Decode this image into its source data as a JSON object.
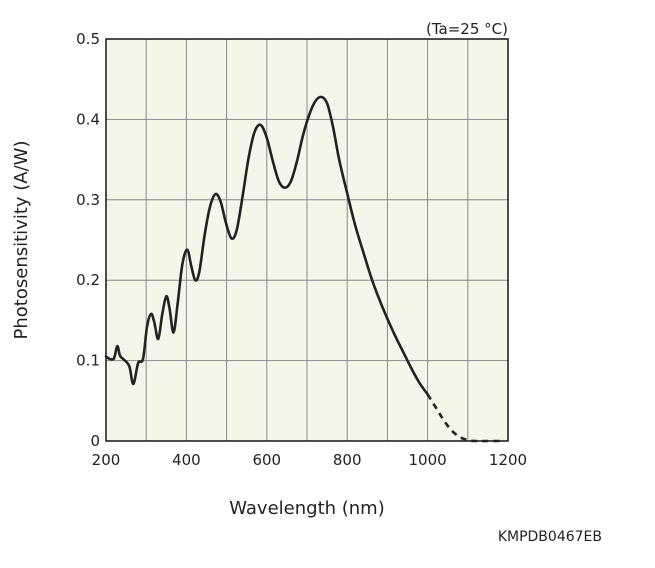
{
  "chart_data": {
    "type": "line",
    "condition": "(Ta=25 °C)",
    "xlabel": "Wavelength (nm)",
    "ylabel": "Photosensitivity (A/W)",
    "xlim": [
      200,
      1200
    ],
    "ylim": [
      0,
      0.5
    ],
    "x_ticks": [
      200,
      400,
      600,
      800,
      1000,
      1200
    ],
    "x_tick_labels": [
      "200",
      "400",
      "600",
      "800",
      "1000",
      "1200"
    ],
    "y_ticks": [
      0,
      0.1,
      0.2,
      0.3,
      0.4,
      0.5
    ],
    "y_tick_labels": [
      "0",
      "0.1",
      "0.2",
      "0.3",
      "0.4",
      "0.5"
    ],
    "x_grid_step": 100,
    "grid": true,
    "doc_code": "KMPDB0467EB",
    "colors": {
      "plot_background": "#f6f5ea",
      "grid": "#8a8a8a",
      "line": "#222222"
    },
    "series": [
      {
        "style": "solid",
        "points": [
          [
            200,
            0.105
          ],
          [
            210,
            0.102
          ],
          [
            220,
            0.103
          ],
          [
            228,
            0.118
          ],
          [
            235,
            0.106
          ],
          [
            245,
            0.101
          ],
          [
            258,
            0.093
          ],
          [
            268,
            0.071
          ],
          [
            280,
            0.097
          ],
          [
            292,
            0.102
          ],
          [
            302,
            0.142
          ],
          [
            312,
            0.158
          ],
          [
            320,
            0.148
          ],
          [
            330,
            0.127
          ],
          [
            340,
            0.158
          ],
          [
            350,
            0.18
          ],
          [
            358,
            0.165
          ],
          [
            368,
            0.135
          ],
          [
            378,
            0.17
          ],
          [
            390,
            0.22
          ],
          [
            402,
            0.238
          ],
          [
            412,
            0.218
          ],
          [
            422,
            0.2
          ],
          [
            432,
            0.21
          ],
          [
            445,
            0.255
          ],
          [
            458,
            0.29
          ],
          [
            472,
            0.307
          ],
          [
            485,
            0.298
          ],
          [
            498,
            0.272
          ],
          [
            512,
            0.252
          ],
          [
            525,
            0.262
          ],
          [
            540,
            0.305
          ],
          [
            555,
            0.353
          ],
          [
            570,
            0.385
          ],
          [
            585,
            0.393
          ],
          [
            600,
            0.377
          ],
          [
            615,
            0.348
          ],
          [
            630,
            0.323
          ],
          [
            645,
            0.315
          ],
          [
            660,
            0.323
          ],
          [
            675,
            0.348
          ],
          [
            690,
            0.38
          ],
          [
            705,
            0.405
          ],
          [
            720,
            0.422
          ],
          [
            735,
            0.428
          ],
          [
            750,
            0.42
          ],
          [
            765,
            0.39
          ],
          [
            780,
            0.35
          ],
          [
            800,
            0.308
          ],
          [
            820,
            0.268
          ],
          [
            840,
            0.235
          ],
          [
            860,
            0.203
          ],
          [
            880,
            0.176
          ],
          [
            900,
            0.152
          ],
          [
            920,
            0.13
          ],
          [
            940,
            0.11
          ],
          [
            960,
            0.09
          ],
          [
            980,
            0.072
          ],
          [
            1000,
            0.058
          ]
        ]
      },
      {
        "style": "dashed",
        "points": [
          [
            1000,
            0.058
          ],
          [
            1020,
            0.042
          ],
          [
            1040,
            0.026
          ],
          [
            1060,
            0.013
          ],
          [
            1080,
            0.005
          ],
          [
            1100,
            0.001
          ],
          [
            1120,
            0.0
          ],
          [
            1150,
            0.0
          ],
          [
            1180,
            0.0
          ]
        ]
      }
    ]
  }
}
